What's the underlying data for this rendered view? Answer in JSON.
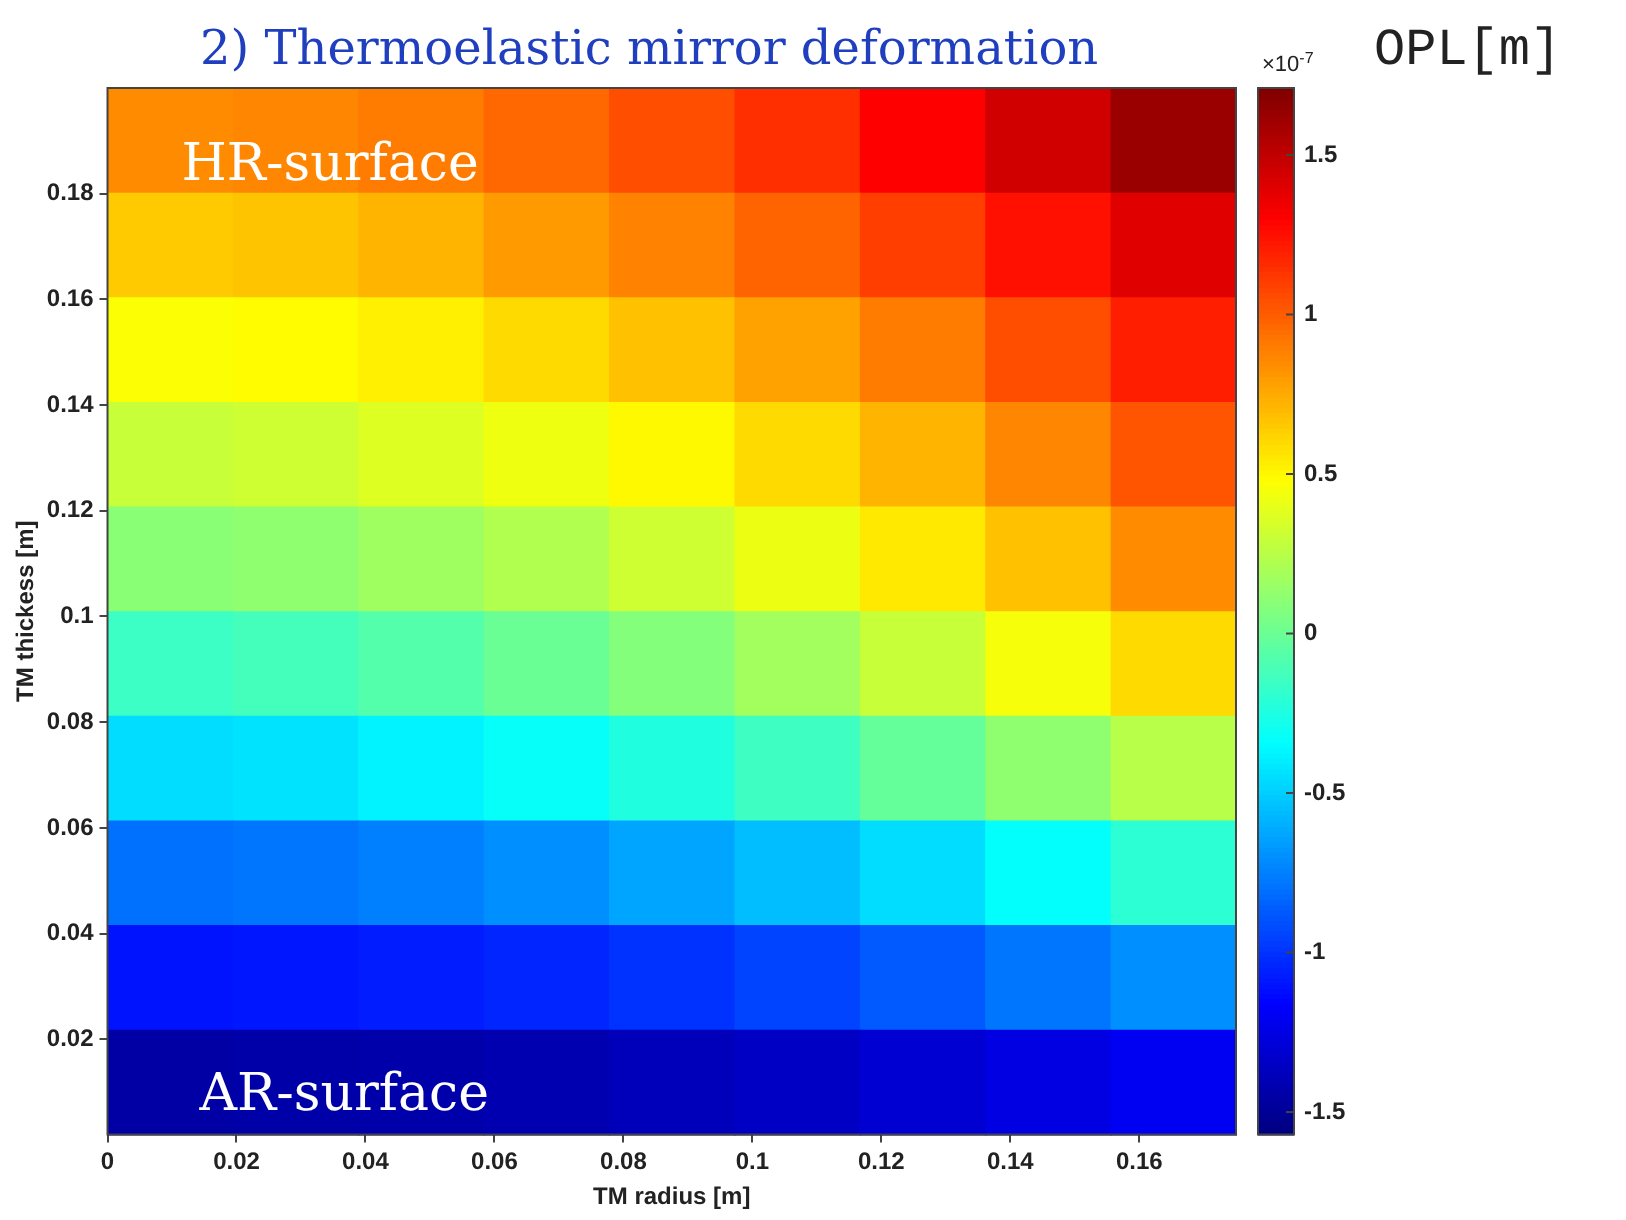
{
  "chart_data": {
    "type": "heatmap",
    "title": "2) Thermoelastic mirror deformation",
    "xlabel": "TM radius [m]",
    "ylabel": "TM thickess [m]",
    "clabel": "OPL[m]",
    "annotations": [
      "HR-surface",
      "AR-surface",
      "×10$^{-7}$"
    ],
    "xlim": [
      0,
      0.175
    ],
    "ylim": [
      0.002,
      0.2
    ],
    "xticks": [
      0,
      0.02,
      0.04,
      0.06,
      0.08,
      0.1,
      0.12,
      0.14,
      0.16
    ],
    "yticks": [
      0.02,
      0.04,
      0.06,
      0.08,
      0.1,
      0.12,
      0.14,
      0.16,
      0.18
    ],
    "clim": [
      -1.57,
      1.71
    ],
    "cticks": [
      -1.5,
      -1,
      -0.5,
      0,
      0.5,
      1,
      1.5
    ],
    "cells": [
      [
        0.85,
        0.87,
        0.9,
        0.97,
        1.05,
        1.15,
        1.3,
        1.45,
        1.62
      ],
      [
        0.65,
        0.67,
        0.72,
        0.8,
        0.88,
        0.98,
        1.1,
        1.25,
        1.4
      ],
      [
        0.47,
        0.49,
        0.53,
        0.6,
        0.68,
        0.78,
        0.9,
        1.05,
        1.2
      ],
      [
        0.3,
        0.32,
        0.37,
        0.43,
        0.5,
        0.6,
        0.72,
        0.87,
        1.03
      ],
      [
        0.1,
        0.12,
        0.17,
        0.23,
        0.32,
        0.42,
        0.55,
        0.68,
        0.85
      ],
      [
        -0.15,
        -0.12,
        -0.07,
        0,
        0.08,
        0.18,
        0.3,
        0.45,
        0.6
      ],
      [
        -0.45,
        -0.43,
        -0.38,
        -0.32,
        -0.24,
        -0.14,
        -0.02,
        0.12,
        0.25
      ],
      [
        -0.8,
        -0.78,
        -0.75,
        -0.7,
        -0.63,
        -0.55,
        -0.45,
        -0.33,
        -0.2
      ],
      [
        -1.1,
        -1.09,
        -1.07,
        -1.04,
        -1.0,
        -0.94,
        -0.87,
        -0.78,
        -0.7
      ],
      [
        -1.45,
        -1.44,
        -1.43,
        -1.41,
        -1.38,
        -1.35,
        -1.3,
        -1.25,
        -1.2
      ]
    ]
  }
}
